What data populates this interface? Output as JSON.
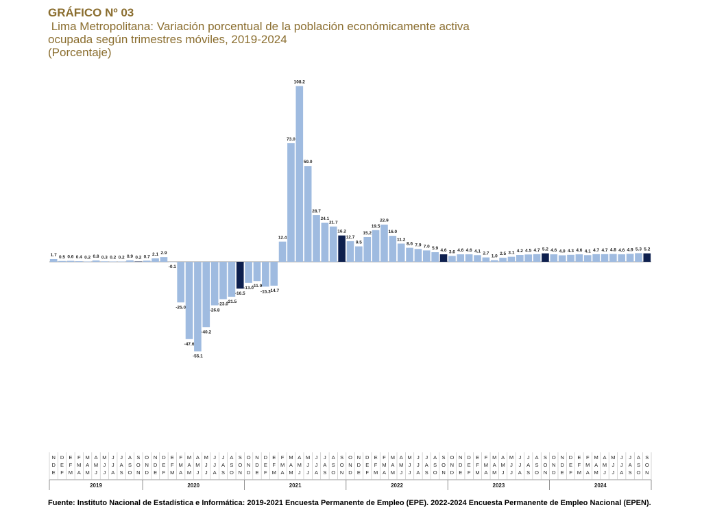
{
  "header": {
    "chart_number": "GRÁFICO Nº 03",
    "title_line1": " Lima Metropolitana: Variación porcentual de la población económicamente activa",
    "title_line2": "ocupada según trimestres móviles, 2019-2024",
    "title_line3": "(Porcentaje)"
  },
  "footer": {
    "source": "Fuente: Instituto Nacional de Estadística e Informática: 2019-2021 Encuesta Permanente de Empleo (EPE). 2022-2024 Encuesta Permanente de Empleo Nacional (EPEN)."
  },
  "colors": {
    "bar": "#9fbbe0",
    "highlight": "#0d1f4e",
    "title": "#8a6d2e"
  },
  "chart_data": {
    "type": "bar",
    "values": [
      1.7,
      0.5,
      0.6,
      0.4,
      0.2,
      0.8,
      0.3,
      0.2,
      0.2,
      0.9,
      0.2,
      0.7,
      2.1,
      2.9,
      -0.1,
      -25.0,
      -47.6,
      -55.1,
      -40.2,
      -26.8,
      -23.0,
      -21.5,
      -16.5,
      -13.0,
      -11.9,
      -15.3,
      -14.7,
      12.4,
      73.0,
      108.2,
      59.0,
      28.7,
      24.1,
      21.7,
      16.2,
      12.7,
      9.5,
      15.2,
      19.5,
      22.9,
      16.0,
      11.2,
      8.6,
      7.9,
      7.0,
      5.9,
      4.6,
      3.6,
      4.6,
      4.6,
      4.1,
      2.7,
      1.0,
      2.5,
      3.1,
      4.2,
      4.5,
      4.7,
      5.2,
      4.6,
      4.0,
      4.3,
      4.6,
      4.1,
      4.7,
      4.7,
      4.8,
      4.6,
      4.9,
      5.3,
      5.2
    ],
    "value_labels": [
      "1.7",
      "0.5",
      "0.6",
      "0.4",
      "0.2",
      "0.8",
      "0.3",
      "0.2",
      "0.2",
      "0.9",
      "0.2",
      "0.7",
      "2.1",
      "2.9",
      "-0.1",
      "-25.0",
      "-47.6",
      "-55.1",
      "-40.2",
      "-26.8",
      "-23.0",
      "-21.5",
      "-16.5",
      "-13.0",
      "-11.9",
      "-15.3",
      "-14.7",
      "12.4",
      "73.0",
      "108.2",
      "59.0",
      "28.7",
      "24.1",
      "21.7",
      "16.2",
      "12.7",
      "9.5",
      "15.2",
      "19.5",
      "22.9",
      "16.0",
      "11.2",
      "8.6",
      "7.9",
      "7.0",
      "5.9",
      "4.6",
      "3.6",
      "4.6",
      "4.6",
      "4.1",
      "2.7",
      "1.0",
      "2.5",
      "3.1",
      "4.2",
      "4.5",
      "4.7",
      "5.2",
      "4.6",
      "4.0",
      "4.3",
      "4.6",
      "4.1",
      "4.7",
      "4.7",
      "4.8",
      "4.6",
      "4.9",
      "5.3",
      "5.2"
    ],
    "highlighted": [
      10,
      22,
      34,
      46,
      58,
      70
    ],
    "month_labels": [
      [
        "N",
        "D",
        "E"
      ],
      [
        "D",
        "E",
        "F"
      ],
      [
        "E",
        "F",
        "M"
      ],
      [
        "F",
        "M",
        "A"
      ],
      [
        "M",
        "A",
        "M"
      ],
      [
        "A",
        "M",
        "J"
      ],
      [
        "M",
        "J",
        "J"
      ],
      [
        "J",
        "J",
        "A"
      ],
      [
        "J",
        "A",
        "S"
      ],
      [
        "A",
        "S",
        "O"
      ],
      [
        "S",
        "O",
        "N"
      ],
      [
        "O",
        "N",
        "D"
      ],
      [
        "N",
        "D",
        "E"
      ],
      [
        "D",
        "E",
        "F"
      ],
      [
        "E",
        "F",
        "M"
      ],
      [
        "F",
        "M",
        "A"
      ],
      [
        "M",
        "A",
        "M"
      ],
      [
        "A",
        "M",
        "J"
      ],
      [
        "M",
        "J",
        "J"
      ],
      [
        "J",
        "J",
        "A"
      ],
      [
        "J",
        "A",
        "S"
      ],
      [
        "A",
        "S",
        "O"
      ],
      [
        "S",
        "O",
        "N"
      ],
      [
        "O",
        "N",
        "D"
      ],
      [
        "N",
        "D",
        "E"
      ],
      [
        "D",
        "E",
        "F"
      ],
      [
        "E",
        "F",
        "M"
      ],
      [
        "F",
        "M",
        "A"
      ],
      [
        "M",
        "A",
        "M"
      ],
      [
        "A",
        "M",
        "J"
      ],
      [
        "M",
        "J",
        "J"
      ],
      [
        "J",
        "J",
        "A"
      ],
      [
        "J",
        "A",
        "S"
      ],
      [
        "A",
        "S",
        "O"
      ],
      [
        "S",
        "O",
        "N"
      ],
      [
        "O",
        "N",
        "D"
      ],
      [
        "N",
        "D",
        "E"
      ],
      [
        "D",
        "E",
        "F"
      ],
      [
        "E",
        "F",
        "M"
      ],
      [
        "F",
        "M",
        "A"
      ],
      [
        "M",
        "A",
        "M"
      ],
      [
        "A",
        "M",
        "J"
      ],
      [
        "M",
        "J",
        "J"
      ],
      [
        "J",
        "J",
        "A"
      ],
      [
        "J",
        "A",
        "S"
      ],
      [
        "A",
        "S",
        "O"
      ],
      [
        "S",
        "O",
        "N"
      ],
      [
        "O",
        "N",
        "D"
      ],
      [
        "N",
        "D",
        "E"
      ],
      [
        "D",
        "E",
        "F"
      ],
      [
        "E",
        "F",
        "M"
      ],
      [
        "F",
        "M",
        "A"
      ],
      [
        "M",
        "A",
        "M"
      ],
      [
        "A",
        "M",
        "J"
      ],
      [
        "M",
        "J",
        "J"
      ],
      [
        "J",
        "J",
        "A"
      ],
      [
        "J",
        "A",
        "S"
      ],
      [
        "A",
        "S",
        "O"
      ],
      [
        "S",
        "O",
        "N"
      ],
      [
        "O",
        "N",
        "D"
      ],
      [
        "N",
        "D",
        "E"
      ],
      [
        "D",
        "E",
        "F"
      ],
      [
        "E",
        "F",
        "M"
      ],
      [
        "F",
        "M",
        "A"
      ],
      [
        "M",
        "A",
        "M"
      ],
      [
        "A",
        "M",
        "J"
      ],
      [
        "M",
        "J",
        "J"
      ],
      [
        "J",
        "J",
        "A"
      ],
      [
        "J",
        "A",
        "S"
      ],
      [
        "A",
        "S",
        "O"
      ],
      [
        "S",
        "O",
        "N"
      ]
    ],
    "years": [
      {
        "label": "2019",
        "start": 0,
        "count": 11
      },
      {
        "label": "2020",
        "start": 11,
        "count": 12
      },
      {
        "label": "2021",
        "start": 23,
        "count": 12
      },
      {
        "label": "2022",
        "start": 35,
        "count": 12
      },
      {
        "label": "2023",
        "start": 47,
        "count": 12
      },
      {
        "label": "2024",
        "start": 59,
        "count": 12
      }
    ],
    "ylim": [
      -60,
      115
    ],
    "grid": false,
    "legend": "none"
  }
}
